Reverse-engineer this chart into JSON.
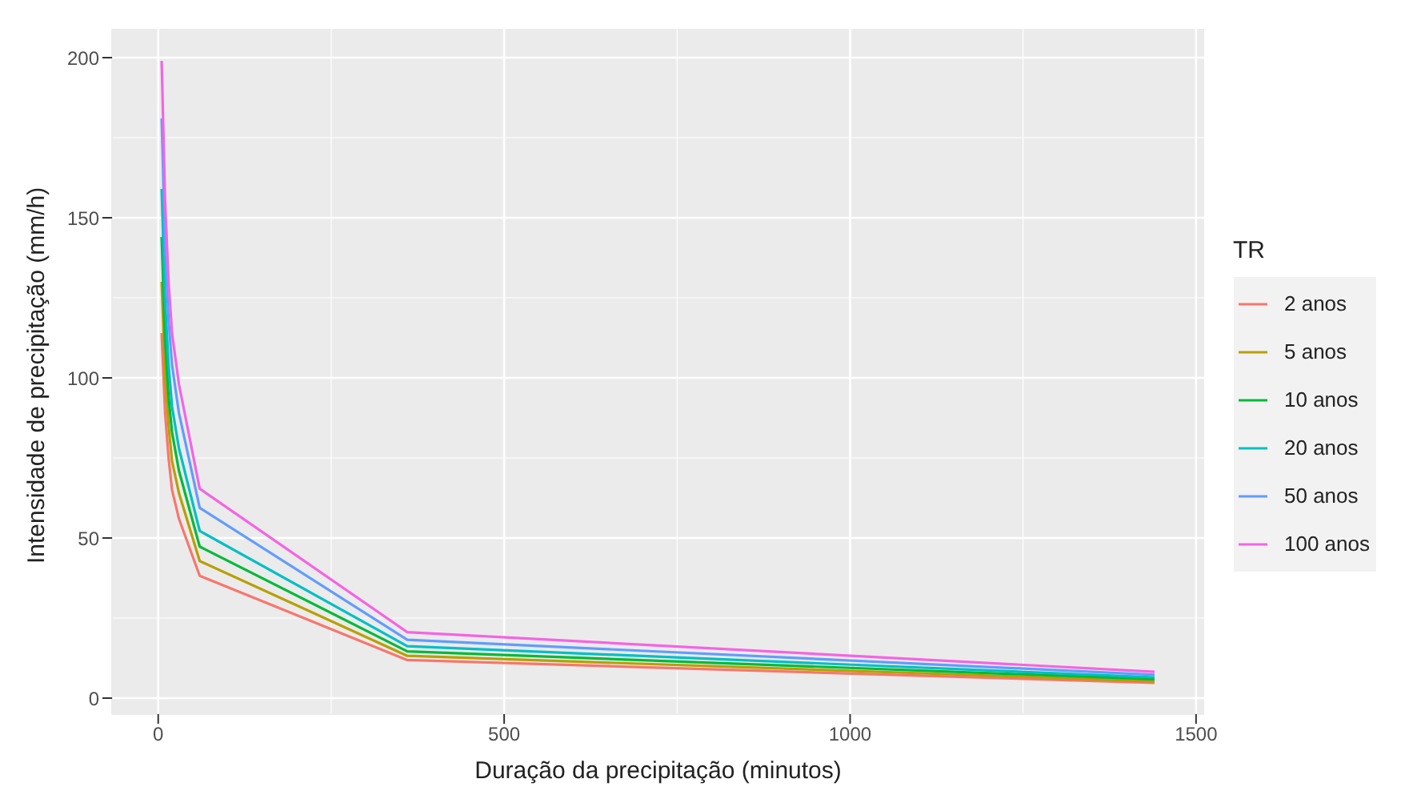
{
  "chart_data": {
    "type": "line",
    "xlabel": "Duração da precipitação (minutos)",
    "ylabel": "Intensidade de precipitação (mm/h)",
    "legend_title": "TR",
    "x": [
      5,
      10,
      15,
      20,
      30,
      60,
      360,
      1440
    ],
    "series": [
      {
        "name": "2 anos",
        "color": "#f8766d",
        "values": [
          114,
          89,
          75,
          65,
          56,
          38.2,
          11.9,
          4.8
        ]
      },
      {
        "name": "5 anos",
        "color": "#b79f00",
        "values": [
          130,
          101,
          85,
          74,
          64,
          42.8,
          13.2,
          5.3
        ]
      },
      {
        "name": "10 anos",
        "color": "#00ba38",
        "values": [
          144,
          112,
          94,
          83,
          71,
          47.3,
          14.6,
          5.9
        ]
      },
      {
        "name": "20 anos",
        "color": "#00bfc4",
        "values": [
          159,
          124,
          104,
          91,
          78,
          52.2,
          16.2,
          6.5
        ]
      },
      {
        "name": "50 anos",
        "color": "#619cff",
        "values": [
          181,
          141,
          118,
          104,
          89,
          59.4,
          18.2,
          7.3
        ]
      },
      {
        "name": "100 anos",
        "color": "#f564e3",
        "values": [
          199,
          155,
          130,
          114,
          98,
          65.4,
          20.6,
          8.2
        ]
      }
    ],
    "xlim": [
      -66.75,
      1511.75
    ],
    "xticks": [
      0,
      500,
      1000,
      1500
    ],
    "ylim": [
      -5,
      209
    ],
    "yticks": [
      0,
      50,
      100,
      150,
      200
    ],
    "grid": true,
    "legend": "right",
    "marker": "none",
    "line_style": "solid"
  }
}
